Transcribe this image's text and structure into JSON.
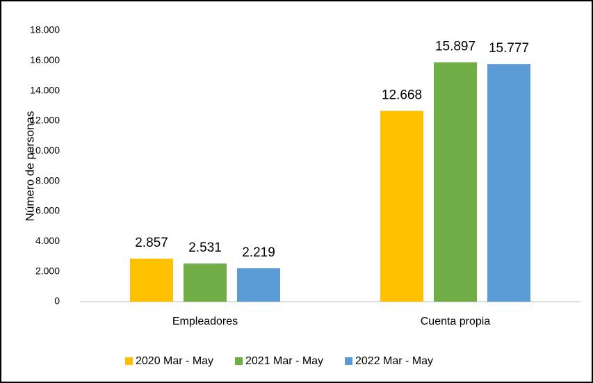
{
  "chart_data": {
    "type": "bar",
    "y_label": "Número de personas",
    "categories": [
      "Empleadores",
      "Cuenta propia"
    ],
    "series": [
      {
        "name": "2020 Mar - May",
        "color": "#FFC000",
        "values": [
          2857,
          12668
        ],
        "value_labels": [
          "2.857",
          "12.668"
        ]
      },
      {
        "name": "2021 Mar - May",
        "color": "#70AD47",
        "values": [
          2531,
          15897
        ],
        "value_labels": [
          "2.531",
          "15.897"
        ]
      },
      {
        "name": "2022 Mar - May",
        "color": "#5B9BD5",
        "values": [
          2219,
          15777
        ],
        "value_labels": [
          "2.219",
          "15.777"
        ]
      }
    ],
    "ylim": [
      0,
      18000
    ],
    "yticks": [
      0,
      {
        "value": 2000,
        "label": "2.000"
      },
      {
        "value": 4000,
        "label": "4.000"
      },
      {
        "value": 6000,
        "label": "6.000"
      },
      {
        "value": 8000,
        "label": "8.000"
      },
      {
        "value": 10000,
        "label": "10.000"
      },
      {
        "value": 12000,
        "label": "12.000"
      },
      {
        "value": 14000,
        "label": "14.000"
      },
      {
        "value": 16000,
        "label": "16.000"
      },
      {
        "value": 18000,
        "label": "18.000"
      }
    ],
    "grid": false,
    "legend": "bottom"
  }
}
